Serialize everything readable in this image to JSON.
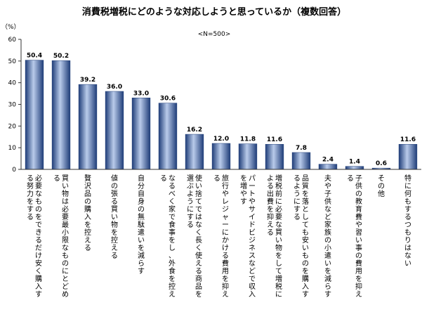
{
  "chart_data": {
    "type": "bar",
    "title": "消費税増税にどのような対応しようと思っているか（複数回答）",
    "ylabel": "（%）",
    "note": "<N=500>",
    "ylim": [
      0,
      60
    ],
    "yticks": [
      0,
      10,
      20,
      30,
      40,
      50,
      60
    ],
    "grid": false,
    "categories": [
      "必要なものをできるだけ安く購入する努力をする",
      "買い物は必要最小限なものにとどめる",
      "贅沢品の購入を控える",
      "値の張る買い物を控える",
      "自分自身の無駄遣いを減らす",
      "なるべく家で食事をし、外食を控える",
      "使い捨てではなく長く使える商品を選ぶようにする",
      "旅行やレジャーにかける費用を抑える",
      "パートやサイドビジネスなどで収入を増やす",
      "増税前に必要な買い物をして増税による出費を抑える",
      "品質を落としても安いものを購入するようにする",
      "夫や子供など家族の小遣いを減らす",
      "子供の教育費や習い事の費用を抑える",
      "その他",
      "特に何もするつもりはない"
    ],
    "values": [
      50.4,
      50.2,
      39.2,
      36.0,
      33.0,
      30.6,
      16.2,
      12.0,
      11.8,
      11.6,
      7.8,
      2.4,
      1.4,
      0.6,
      11.6
    ],
    "value_labels": [
      "50.4",
      "50.2",
      "39.2",
      "36.0",
      "33.0",
      "30.6",
      "16.2",
      "12.0",
      "11.8",
      "11.6",
      "7.8",
      "2.4",
      "1.4",
      "0.6",
      "11.6"
    ],
    "colors": {
      "bar_dark": "#1f3d78",
      "bar_light": "#b9cbea",
      "axis": "#333333"
    }
  }
}
